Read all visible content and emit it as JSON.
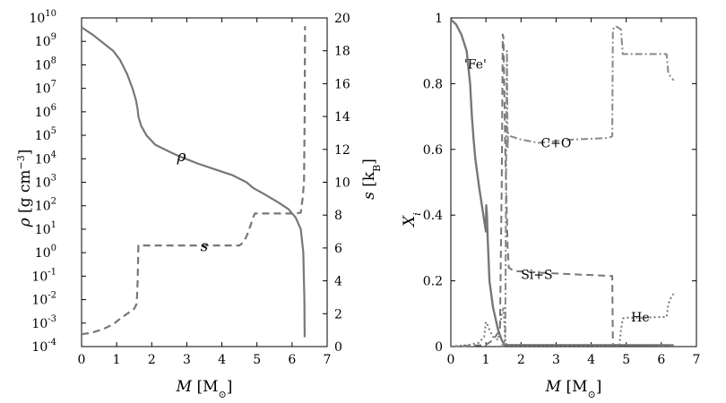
{
  "chart_data": [
    {
      "type": "line",
      "xlabel": "M  [M⊙]",
      "ylabel_left": "ρ [g cm⁻³]",
      "ylabel_right": "s [kB]",
      "xlim": [
        0,
        7
      ],
      "ylim_left_log10": [
        -4,
        10
      ],
      "ylim_right": [
        0,
        20
      ],
      "y_scale_left": "log",
      "x_ticks": [
        "0",
        "1",
        "2",
        "3",
        "4",
        "5",
        "6",
        "7"
      ],
      "y_ticks_left": [
        "-4",
        "-3",
        "-2",
        "-1",
        "0",
        "1",
        "2",
        "3",
        "4",
        "5",
        "6",
        "7",
        "8",
        "9",
        "10"
      ],
      "y_ticks_right": [
        "0",
        "2",
        "4",
        "6",
        "8",
        "10",
        "12",
        "14",
        "16",
        "18",
        "20"
      ],
      "series": [
        {
          "name": "ρ",
          "axis": "left",
          "style": "solid",
          "color": "#777777",
          "x": [
            0,
            0.3,
            0.6,
            0.9,
            1.1,
            1.3,
            1.45,
            1.55,
            1.6,
            1.62,
            1.7,
            1.85,
            2.1,
            2.5,
            2.8,
            3.3,
            3.8,
            4.3,
            4.7,
            4.9,
            5.2,
            5.6,
            5.9,
            6.1,
            6.25,
            6.32,
            6.35,
            6.36
          ],
          "y": [
            9.6,
            9.3,
            8.95,
            8.6,
            8.2,
            7.6,
            7.0,
            6.5,
            6.1,
            5.8,
            5.4,
            5.0,
            4.6,
            4.3,
            4.1,
            3.8,
            3.55,
            3.3,
            3.0,
            2.75,
            2.5,
            2.15,
            1.85,
            1.5,
            1.0,
            0.0,
            -2.0,
            -3.6
          ]
        },
        {
          "name": "s",
          "axis": "right",
          "style": "dashed",
          "color": "#777777",
          "x": [
            0,
            0.3,
            0.6,
            0.9,
            1.1,
            1.3,
            1.4,
            1.5,
            1.57,
            1.6,
            1.62,
            4.5,
            4.62,
            4.72,
            4.82,
            4.9,
            4.94,
            6.1,
            6.25,
            6.3,
            6.34,
            6.36,
            6.37
          ],
          "y": [
            0.75,
            0.85,
            1.05,
            1.35,
            1.7,
            2.0,
            2.15,
            2.3,
            2.6,
            4.0,
            6.15,
            6.15,
            6.35,
            6.8,
            7.4,
            7.9,
            8.1,
            8.1,
            8.15,
            9.0,
            10.0,
            14.0,
            19.5
          ]
        }
      ],
      "annotations": [
        {
          "text": "ρ",
          "x": 2.85,
          "y_log": 3.9
        },
        {
          "text": "s",
          "x": 3.5,
          "y_right": 5.8
        }
      ]
    },
    {
      "type": "line",
      "xlabel": "M  [M⊙]",
      "ylabel": "Xi",
      "xlim": [
        0,
        7
      ],
      "ylim": [
        0,
        1
      ],
      "x_ticks": [
        "0",
        "1",
        "2",
        "3",
        "4",
        "5",
        "6",
        "7"
      ],
      "y_ticks": [
        "0",
        "0.2",
        "0.4",
        "0.6",
        "0.8",
        "1"
      ],
      "series": [
        {
          "name": "'Fe'",
          "style": "solid",
          "color": "#777777",
          "x": [
            0,
            0.05,
            0.15,
            0.3,
            0.45,
            0.55,
            0.6,
            0.65,
            0.7,
            0.8,
            0.9,
            1.0,
            1.01,
            1.03,
            1.05,
            1.1,
            1.2,
            1.35,
            1.45,
            1.5,
            1.52,
            1.55,
            6.35
          ],
          "y": [
            0.995,
            0.99,
            0.98,
            0.95,
            0.9,
            0.8,
            0.7,
            0.63,
            0.57,
            0.49,
            0.42,
            0.35,
            0.43,
            0.4,
            0.33,
            0.2,
            0.12,
            0.05,
            0.02,
            0.01,
            0.008,
            0.005,
            0.004
          ]
        },
        {
          "name": "Si+S",
          "style": "dashed",
          "color": "#777777",
          "x": [
            0,
            1.0,
            1.2,
            1.4,
            1.45,
            1.48,
            1.5,
            1.55,
            1.62,
            1.65,
            1.8,
            2.5,
            3.5,
            4.55,
            4.6,
            4.62,
            6.35
          ],
          "y": [
            0.0,
            0.005,
            0.02,
            0.05,
            0.5,
            0.95,
            0.94,
            0.6,
            0.3,
            0.24,
            0.23,
            0.225,
            0.22,
            0.215,
            0.215,
            0.005,
            0.003
          ]
        },
        {
          "name": "C+O",
          "style": "dashdot",
          "color": "#888888",
          "x": [
            1.45,
            1.55,
            1.58,
            1.6,
            1.62,
            1.63,
            1.7,
            2.0,
            2.5,
            3.5,
            4.5,
            4.6,
            4.62,
            4.7,
            4.85,
            4.9,
            5.2,
            6.0,
            6.15,
            6.2,
            6.35
          ],
          "y": [
            0.0,
            0.02,
            0.6,
            0.9,
            0.6,
            0.65,
            0.64,
            0.63,
            0.62,
            0.63,
            0.635,
            0.64,
            0.965,
            0.975,
            0.965,
            0.89,
            0.89,
            0.89,
            0.89,
            0.83,
            0.81
          ]
        },
        {
          "name": "He",
          "style": "dotted",
          "color": "#777777",
          "x": [
            0,
            0.5,
            0.8,
            0.95,
            1.0,
            1.05,
            1.1,
            1.2,
            1.35,
            1.45,
            1.5,
            1.55,
            1.6,
            1.65,
            4.8,
            4.85,
            4.9,
            4.95,
            5.0,
            5.5,
            6.0,
            6.15,
            6.2,
            6.3,
            6.35
          ],
          "y": [
            0.0,
            0.005,
            0.012,
            0.03,
            0.075,
            0.065,
            0.05,
            0.03,
            0.02,
            0.1,
            0.12,
            0.02,
            0.002,
            0.0,
            0.0,
            0.05,
            0.085,
            0.088,
            0.088,
            0.088,
            0.09,
            0.09,
            0.13,
            0.155,
            0.16
          ]
        }
      ],
      "annotations": [
        {
          "text": "'Fe'",
          "x": 0.7,
          "y": 0.86
        },
        {
          "text": "C+O",
          "x": 3.0,
          "y": 0.62
        },
        {
          "text": "Si+S",
          "x": 2.45,
          "y": 0.22
        },
        {
          "text": "He",
          "x": 5.4,
          "y": 0.09
        }
      ]
    }
  ]
}
